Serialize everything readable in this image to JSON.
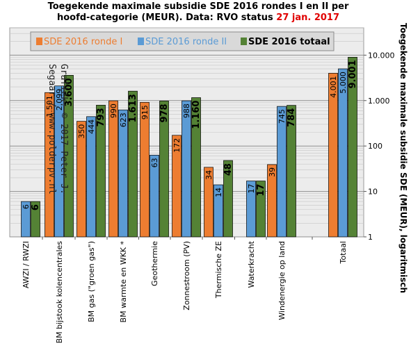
{
  "title": {
    "line1": "Toegekende maximale subsidie SDE 2016 rondes I en II per",
    "line2_prefix": "hoofd-categorie (MEUR). Data: RVO status ",
    "line2_highlight": "27 jan. 2017"
  },
  "watermark": {
    "line1": "Grafiek: © 2017 Peter J.",
    "line2": "Segaar / www.polderpv.nl"
  },
  "colors": {
    "ronde1": "#ed7d31",
    "ronde2": "#5b9bd5",
    "totaal": "#548235",
    "plot_bg": "#ececec",
    "highlight": "#e00000"
  },
  "chart_data": {
    "type": "bar",
    "scale": "log",
    "ylim": [
      1,
      40000
    ],
    "ylabel": "Toegekende maximale subsidie SDE (MEUR), logaritmisch",
    "yticks": [
      {
        "value": 1,
        "label": "1"
      },
      {
        "value": 10,
        "label": "10"
      },
      {
        "value": 100,
        "label": "100"
      },
      {
        "value": 1000,
        "label": "1.000"
      },
      {
        "value": 10000,
        "label": "10.000"
      }
    ],
    "legend_position": "top",
    "categories": [
      "AWZI / RWZI",
      "BM bijstook kolencentrales",
      "BM gas (\"groen gas\")",
      "BM warmte en WKK *",
      "Geothermie",
      "Zonnestroom (PV)",
      "Thermische ZE",
      "Waterkracht",
      "Windenergie op land",
      "Totaal"
    ],
    "series": [
      {
        "name": "SDE 2016 ronde I",
        "color": "#ed7d31",
        "values": [
          null,
          1501,
          350,
          990,
          915,
          172,
          34,
          null,
          39,
          4001
        ],
        "labels": [
          "",
          "1.501",
          "350",
          "990",
          "915",
          "172",
          "34",
          "",
          "39",
          "4.001"
        ]
      },
      {
        "name": "SDE 2016 ronde II",
        "color": "#5b9bd5",
        "values": [
          6,
          2099,
          444,
          623,
          63,
          988,
          14,
          17,
          745,
          5000
        ],
        "labels": [
          "6",
          "2.099",
          "444",
          "623",
          "63",
          "988",
          "14",
          "17",
          "745",
          "5.000"
        ]
      },
      {
        "name": "SDE 2016 totaal",
        "color": "#548235",
        "values": [
          6,
          3600,
          793,
          1613,
          978,
          1160,
          48,
          17,
          784,
          9001
        ],
        "labels": [
          "6",
          "3.600",
          "793",
          "1.613",
          "978",
          "1.160",
          "48",
          "17",
          "784",
          "9.001"
        ]
      }
    ]
  }
}
